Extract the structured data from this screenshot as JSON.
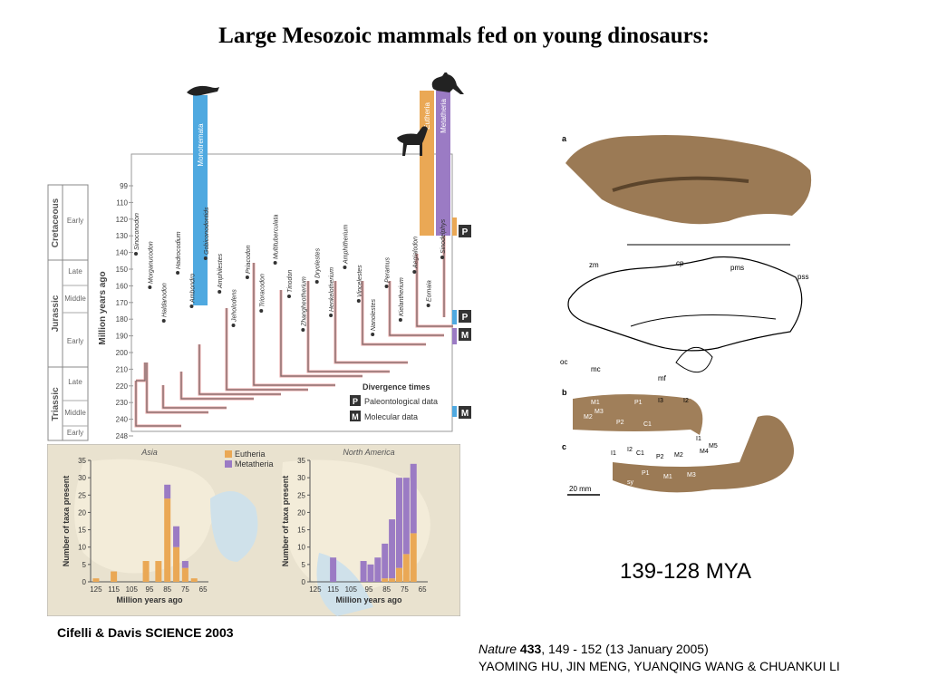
{
  "title": "Large Mesozoic mammals fed on young dinosaurs:",
  "mya_caption": "139-128 MYA",
  "credit_left": "Cifelli & Davis SCIENCE 2003",
  "citation": {
    "journal": "Nature",
    "volume": "433",
    "pages_date": ", 149 - 152 (13 January 2005)",
    "authors": "YAOMING HU, JIN MENG, YUANQING WANG & CHUANKUI LI"
  },
  "phylogeny": {
    "axis_label": "Million years ago",
    "ticks": [
      "99",
      "110",
      "120",
      "130",
      "140",
      "150",
      "160",
      "170",
      "180",
      "190",
      "200",
      "210",
      "220",
      "230",
      "240",
      "248"
    ],
    "periods": [
      {
        "name": "Cretaceous",
        "epochs": [
          "Early"
        ]
      },
      {
        "name": "Jurassic",
        "epochs": [
          "Late",
          "Middle",
          "Early"
        ]
      },
      {
        "name": "Triassic",
        "epochs": [
          "Late",
          "Middle",
          "Early"
        ]
      }
    ],
    "crown_labels": [
      "Monotremata",
      "Eutheria",
      "Metatheria"
    ],
    "taxa": [
      "Sinoconodon",
      "Morganucodon",
      "Haldanodon",
      "Hadrocodium",
      "Ambondro",
      "Gobiconodontids",
      "Amphilestes",
      "Jeholodens",
      "Priacodon",
      "Trioracodon",
      "Multituberculata",
      "Tinodon",
      "Zhangheotherium",
      "Dryolestes",
      "Henkelotherium",
      "Amphitherium",
      "Vincelestes",
      "Nanolestes",
      "Peramus",
      "Kielantherium",
      "Aegialodon",
      "Eomaia",
      "Sinodelphys"
    ],
    "legend_title": "Divergence times",
    "legend": [
      {
        "key": "P",
        "label": "Paleontological data"
      },
      {
        "key": "M",
        "label": "Molecular data"
      }
    ],
    "side_markers": [
      "P",
      "P",
      "M",
      "M"
    ]
  },
  "chart_data": [
    {
      "type": "bar",
      "title": "Asia",
      "ylabel": "Number of taxa present",
      "xlabel": "Million years ago",
      "x_ticks": [
        "125",
        "115",
        "105",
        "95",
        "85",
        "75",
        "65"
      ],
      "ylim": [
        0,
        35
      ],
      "y_ticks": [
        "0",
        "5",
        "10",
        "15",
        "20",
        "25",
        "30",
        "35"
      ],
      "x": [
        125,
        115,
        97,
        90,
        85,
        80,
        75,
        70,
        65
      ],
      "series": [
        {
          "name": "Eutheria",
          "values": [
            1,
            3,
            6,
            6,
            24,
            10,
            4,
            1,
            0
          ]
        },
        {
          "name": "Metatheria",
          "values": [
            0,
            0,
            0,
            0,
            4,
            6,
            2,
            0,
            0
          ]
        }
      ]
    },
    {
      "type": "bar",
      "title": "North America",
      "ylabel": "Number of taxa present",
      "xlabel": "Million years ago",
      "x_ticks": [
        "125",
        "115",
        "105",
        "95",
        "85",
        "75",
        "65"
      ],
      "ylim": [
        0,
        35
      ],
      "y_ticks": [
        "0",
        "5",
        "10",
        "15",
        "20",
        "25",
        "30",
        "35"
      ],
      "x": [
        115,
        98,
        94,
        90,
        86,
        82,
        78,
        74,
        70
      ],
      "series": [
        {
          "name": "Eutheria",
          "values": [
            0,
            0,
            0,
            0,
            1,
            1,
            4,
            8,
            14
          ]
        },
        {
          "name": "Metatheria",
          "values": [
            7,
            6,
            5,
            7,
            10,
            17,
            26,
            22,
            20
          ]
        }
      ]
    }
  ],
  "fossil": {
    "panel_a": "a",
    "panel_b": "b",
    "panel_c": "c",
    "labels_a": [
      "zm",
      "cp",
      "pms",
      "pss",
      "oc",
      "mc",
      "mf"
    ],
    "labels_b": [
      "M1",
      "P1",
      "I3",
      "I2",
      "P2",
      "C1",
      "M2",
      "M3",
      "I1"
    ],
    "labels_c": [
      "I1",
      "I2",
      "C1",
      "P2",
      "M2",
      "M4",
      "M5",
      "P1",
      "M1",
      "M3",
      "sy"
    ],
    "scale": "20 mm"
  }
}
